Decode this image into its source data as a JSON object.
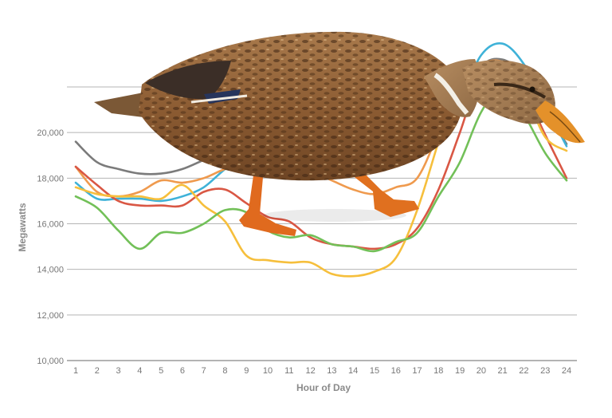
{
  "chart_data": {
    "type": "line",
    "title": "",
    "xlabel": "Hour of Day",
    "ylabel": "Megawatts",
    "x": [
      1,
      2,
      3,
      4,
      5,
      6,
      7,
      8,
      9,
      10,
      11,
      12,
      13,
      14,
      15,
      16,
      17,
      18,
      19,
      20,
      21,
      22,
      23,
      24
    ],
    "x_tick_labels": [
      "1",
      "2",
      "3",
      "4",
      "5",
      "6",
      "7",
      "8",
      "9",
      "10",
      "11",
      "12",
      "13",
      "14",
      "15",
      "16",
      "17",
      "18",
      "19",
      "20",
      "21",
      "22",
      "23",
      "24"
    ],
    "y_ticks": [
      10000,
      12000,
      14000,
      16000,
      18000,
      20000
    ],
    "y_tick_labels": [
      "10,000",
      "12,000",
      "14,000",
      "16,000",
      "18,000",
      "20,000"
    ],
    "ylim": [
      10000,
      22000
    ],
    "grid": "horizontal",
    "legend": "none",
    "series": [
      {
        "color": "#7b7b7b",
        "values": [
          19600,
          18700,
          18400,
          18200,
          18200,
          18400,
          18800,
          19200,
          19600,
          19900,
          20100,
          20100,
          20000,
          19800,
          19600,
          19400,
          19500,
          20100,
          21100,
          22900,
          23200,
          22500,
          21000,
          19500
        ]
      },
      {
        "color": "#3fb2d8",
        "values": [
          17800,
          17100,
          17100,
          17100,
          17000,
          17200,
          17600,
          18400,
          19000,
          19500,
          19900,
          20000,
          19900,
          19800,
          19700,
          19600,
          19800,
          20200,
          21400,
          23400,
          23900,
          23000,
          21200,
          19400
        ]
      },
      {
        "color": "#ef9a4e",
        "values": [
          18500,
          17400,
          17200,
          17400,
          17900,
          17800,
          18000,
          18400,
          18600,
          18500,
          18500,
          18300,
          17900,
          17500,
          17300,
          17600,
          18000,
          20000,
          22200,
          23000,
          23100,
          22200,
          20900,
          20000
        ]
      },
      {
        "color": "#d95744",
        "values": [
          18500,
          17700,
          17000,
          16800,
          16800,
          16800,
          17400,
          17500,
          16900,
          16300,
          16100,
          15400,
          15100,
          15000,
          14900,
          15100,
          15800,
          17500,
          20000,
          22600,
          22800,
          21800,
          19900,
          18000
        ]
      },
      {
        "color": "#f6bf3c",
        "values": [
          17600,
          17300,
          17200,
          17200,
          17100,
          17700,
          16800,
          16100,
          14600,
          14400,
          14300,
          14300,
          13800,
          13700,
          13900,
          14500,
          16600,
          19600,
          22500,
          22800,
          23000,
          21800,
          19800,
          19200
        ]
      },
      {
        "color": "#72c058",
        "values": [
          17200,
          16700,
          15700,
          14900,
          15600,
          15600,
          16000,
          16600,
          16500,
          15700,
          15400,
          15500,
          15100,
          15000,
          14800,
          15200,
          15600,
          17200,
          18700,
          20900,
          22000,
          20800,
          19100,
          17900
        ]
      }
    ]
  }
}
